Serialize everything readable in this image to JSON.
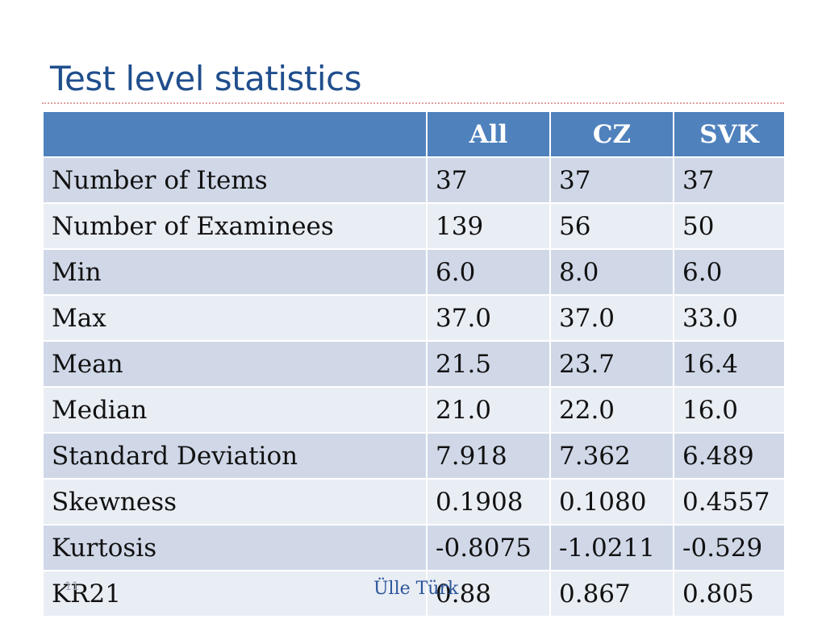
{
  "slide": {
    "title": "Test level statistics",
    "footer_author": "Ülle Türk",
    "page_number": "11"
  },
  "table": {
    "headers": [
      "",
      "All",
      "CZ",
      "SVK"
    ],
    "rows": [
      [
        "Number of Items",
        "37",
        "37",
        "37"
      ],
      [
        "Number of Examinees",
        "139",
        "56",
        "50"
      ],
      [
        "Min",
        "6.0",
        "8.0",
        "6.0"
      ],
      [
        "Max",
        "37.0",
        "37.0",
        "33.0"
      ],
      [
        "Mean",
        "21.5",
        "23.7",
        "16.4"
      ],
      [
        "Median",
        "21.0",
        "22.0",
        "16.0"
      ],
      [
        "Standard Deviation",
        "7.918",
        "7.362",
        "6.489"
      ],
      [
        "Skewness",
        "0.1908",
        "0.1080",
        "0.4557"
      ],
      [
        "Kurtosis",
        "-0.8075",
        "-1.0211",
        "-0.529"
      ],
      [
        "KR21",
        "0.88",
        "0.867",
        "0.805"
      ]
    ]
  },
  "colors": {
    "title": "#1f4e8c",
    "header_bg": "#4f81bd",
    "row_band_dark": "#d0d8e8",
    "row_band_light": "#e9edf4"
  }
}
